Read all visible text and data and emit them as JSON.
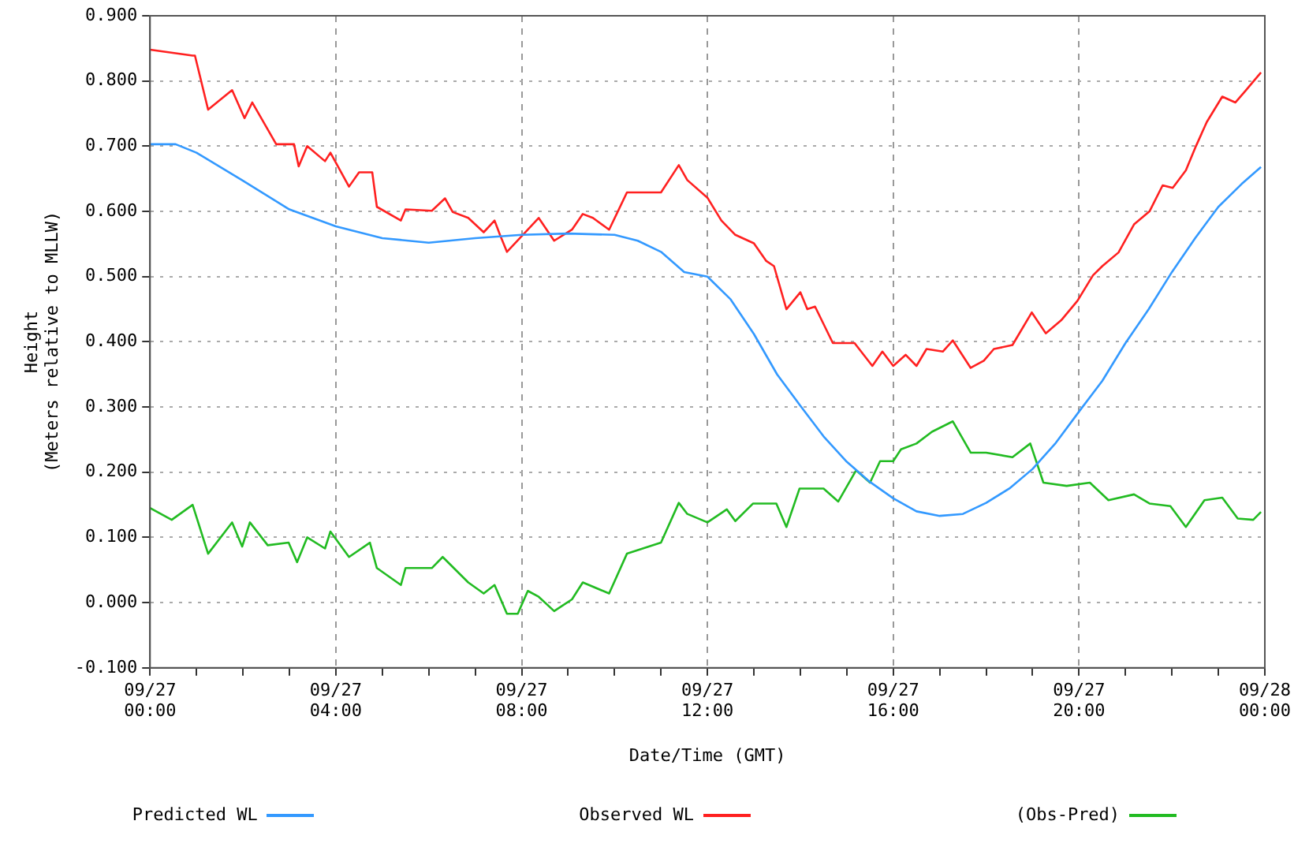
{
  "chart_data": {
    "type": "line",
    "xlabel": "Date/Time (GMT)",
    "ylabel": [
      "Height",
      "(Meters relative to MLLW)"
    ],
    "xlim": [
      "--09-27T00:00",
      "--09-28T00:00"
    ],
    "xticks": [
      {
        "value": "--09-27T00:00",
        "label": "09/27\n00:00"
      },
      {
        "value": "--09-27T01:00",
        "label": null
      },
      {
        "value": "--09-27T02:00",
        "label": null
      },
      {
        "value": "--09-27T03:00",
        "label": null
      },
      {
        "value": "--09-27T04:00",
        "label": "09/27\n04:00"
      },
      {
        "value": "--09-27T05:00",
        "label": null
      },
      {
        "value": "--09-27T06:00",
        "label": null
      },
      {
        "value": "--09-27T07:00",
        "label": null
      },
      {
        "value": "--09-27T08:00",
        "label": "09/27\n08:00"
      },
      {
        "value": "--09-27T09:00",
        "label": null
      },
      {
        "value": "--09-27T10:00",
        "label": null
      },
      {
        "value": "--09-27T11:00",
        "label": null
      },
      {
        "value": "--09-27T12:00",
        "label": "09/27\n12:00"
      },
      {
        "value": "--09-27T13:00",
        "label": null
      },
      {
        "value": "--09-27T14:00",
        "label": null
      },
      {
        "value": "--09-27T15:00",
        "label": null
      },
      {
        "value": "--09-27T16:00",
        "label": "09/27\n16:00"
      },
      {
        "value": "--09-27T17:00",
        "label": null
      },
      {
        "value": "--09-27T18:00",
        "label": null
      },
      {
        "value": "--09-27T19:00",
        "label": null
      },
      {
        "value": "--09-27T20:00",
        "label": "09/27\n20:00"
      },
      {
        "value": "--09-27T21:00",
        "label": null
      },
      {
        "value": "--09-27T22:00",
        "label": null
      },
      {
        "value": "--09-27T23:00",
        "label": null
      },
      {
        "value": "--09-28T00:00",
        "label": "09/28\n00:00"
      }
    ],
    "ylim": [
      -0.1,
      0.9
    ],
    "yticks": [
      {
        "value": -0.1,
        "label": "-0.100"
      },
      {
        "value": 0,
        "label": "0.000"
      },
      {
        "value": 0.1,
        "label": "0.100"
      },
      {
        "value": 0.2,
        "label": "0.200"
      },
      {
        "value": 0.3,
        "label": "0.300"
      },
      {
        "value": 0.4,
        "label": "0.400"
      },
      {
        "value": 0.5,
        "label": "0.500"
      },
      {
        "value": 0.6,
        "label": "0.600"
      },
      {
        "value": 0.7,
        "label": "0.700"
      },
      {
        "value": 0.8,
        "label": "0.800"
      },
      {
        "value": 0.9,
        "label": "0.900"
      }
    ],
    "grid": true,
    "legend": "bottom",
    "marker": "none",
    "line_style": "solid",
    "series": [
      {
        "name": "Predicted WL",
        "color": "#3399ff",
        "x": [
          "--09-27T00:00",
          "--09-27T00:33",
          "--09-27T01:00",
          "--09-27T02:00",
          "--09-27T03:00",
          "--09-27T04:00",
          "--09-27T05:00",
          "--09-27T06:00",
          "--09-27T07:00",
          "--09-27T08:00",
          "--09-27T09:00",
          "--09-27T10:00",
          "--09-27T10:30",
          "--09-27T11:00",
          "--09-27T11:30",
          "--09-27T12:00",
          "--09-27T12:30",
          "--09-27T13:00",
          "--09-27T13:30",
          "--09-27T14:00",
          "--09-27T14:30",
          "--09-27T15:00",
          "--09-27T15:30",
          "--09-27T16:00",
          "--09-27T16:30",
          "--09-27T17:00",
          "--09-27T17:30",
          "--09-27T18:00",
          "--09-27T18:30",
          "--09-27T19:00",
          "--09-27T19:30",
          "--09-27T20:00",
          "--09-27T20:30",
          "--09-27T21:00",
          "--09-27T21:30",
          "--09-27T22:00",
          "--09-27T22:30",
          "--09-27T23:00",
          "--09-27T23:30",
          "--09-27T23:55"
        ],
        "values": [
          0.703,
          0.703,
          0.69,
          0.647,
          0.603,
          0.577,
          0.559,
          0.552,
          0.559,
          0.564,
          0.566,
          0.564,
          0.555,
          0.538,
          0.507,
          0.5,
          0.465,
          0.412,
          0.35,
          0.302,
          0.255,
          0.216,
          0.185,
          0.16,
          0.14,
          0.133,
          0.136,
          0.153,
          0.175,
          0.205,
          0.245,
          0.293,
          0.34,
          0.398,
          0.45,
          0.507,
          0.559,
          0.607,
          0.642,
          0.668
        ]
      },
      {
        "name": "Observed WL",
        "color": "#ff2020",
        "x": [
          "--09-27T00:00",
          "--09-27T00:55",
          "--09-27T00:58",
          "--09-27T01:15",
          "--09-27T01:46",
          "--09-27T02:02",
          "--09-27T02:12",
          "--09-27T02:43",
          "--09-27T03:06",
          "--09-27T03:12",
          "--09-27T03:23",
          "--09-27T03:46",
          "--09-27T03:53",
          "--09-27T04:17",
          "--09-27T04:30",
          "--09-27T04:47",
          "--09-27T04:53",
          "--09-27T05:24",
          "--09-27T05:30",
          "--09-27T06:04",
          "--09-27T06:21",
          "--09-27T06:31",
          "--09-27T06:51",
          "--09-27T07:11",
          "--09-27T07:25",
          "--09-27T07:32",
          "--09-27T07:41",
          "--09-27T08:08",
          "--09-27T08:22",
          "--09-27T08:42",
          "--09-27T09:05",
          "--09-27T09:19",
          "--09-27T09:32",
          "--09-27T09:53",
          "--09-27T10:16",
          "--09-27T11:00",
          "--09-27T11:23",
          "--09-27T11:34",
          "--09-27T12:00",
          "--09-27T12:18",
          "--09-27T12:36",
          "--09-27T13:00",
          "--09-27T13:16",
          "--09-27T13:26",
          "--09-27T13:42",
          "--09-27T14:00",
          "--09-27T14:09",
          "--09-27T14:19",
          "--09-27T14:42",
          "--09-27T15:10",
          "--09-27T15:33",
          "--09-27T15:46",
          "--09-27T16:00",
          "--09-27T16:16",
          "--09-27T16:30",
          "--09-27T16:43",
          "--09-27T17:04",
          "--09-27T17:17",
          "--09-27T17:40",
          "--09-27T17:57",
          "--09-27T18:10",
          "--09-27T18:34",
          "--09-27T18:59",
          "--09-27T19:17",
          "--09-27T19:37",
          "--09-27T19:58",
          "--09-27T20:18",
          "--09-27T20:30",
          "--09-27T20:51",
          "--09-27T21:11",
          "--09-27T21:31",
          "--09-27T21:48",
          "--09-27T22:01",
          "--09-27T22:18",
          "--09-27T22:31",
          "--09-27T22:45",
          "--09-27T23:05",
          "--09-27T23:22",
          "--09-27T23:35",
          "--09-27T23:55"
        ],
        "values": [
          0.848,
          0.839,
          0.839,
          0.756,
          0.786,
          0.743,
          0.767,
          0.703,
          0.703,
          0.669,
          0.7,
          0.677,
          0.69,
          0.638,
          0.66,
          0.66,
          0.607,
          0.586,
          0.603,
          0.601,
          0.62,
          0.599,
          0.59,
          0.568,
          0.586,
          0.564,
          0.538,
          0.572,
          0.59,
          0.555,
          0.572,
          0.596,
          0.59,
          0.572,
          0.629,
          0.629,
          0.671,
          0.648,
          0.621,
          0.586,
          0.564,
          0.551,
          0.524,
          0.516,
          0.45,
          0.476,
          0.45,
          0.454,
          0.398,
          0.398,
          0.363,
          0.385,
          0.363,
          0.38,
          0.363,
          0.389,
          0.385,
          0.402,
          0.36,
          0.371,
          0.389,
          0.395,
          0.445,
          0.413,
          0.433,
          0.463,
          0.502,
          0.516,
          0.537,
          0.58,
          0.6,
          0.64,
          0.636,
          0.663,
          0.7,
          0.737,
          0.776,
          0.767,
          0.785,
          0.813
        ]
      },
      {
        "name": "(Obs-Pred)",
        "color": "#22bb22",
        "x": [
          "--09-27T00:00",
          "--09-27T00:28",
          "--09-27T00:55",
          "--09-27T01:15",
          "--09-27T01:46",
          "--09-27T01:59",
          "--09-27T02:09",
          "--09-27T02:32",
          "--09-27T02:59",
          "--09-27T03:10",
          "--09-27T03:23",
          "--09-27T03:46",
          "--09-27T03:53",
          "--09-27T04:17",
          "--09-27T04:44",
          "--09-27T04:53",
          "--09-27T05:24",
          "--09-27T05:30",
          "--09-27T06:04",
          "--09-27T06:18",
          "--09-27T06:51",
          "--09-27T07:11",
          "--09-27T07:25",
          "--09-27T07:41",
          "--09-27T07:55",
          "--09-27T08:08",
          "--09-27T08:22",
          "--09-27T08:42",
          "--09-27T09:05",
          "--09-27T09:19",
          "--09-27T09:53",
          "--09-27T10:16",
          "--09-27T11:00",
          "--09-27T11:23",
          "--09-27T11:34",
          "--09-27T12:00",
          "--09-27T12:25",
          "--09-27T12:36",
          "--09-27T12:59",
          "--09-27T13:29",
          "--09-27T13:42",
          "--09-27T13:59",
          "--09-27T14:30",
          "--09-27T14:49",
          "--09-27T15:12",
          "--09-27T15:30",
          "--09-27T15:43",
          "--09-27T16:00",
          "--09-27T16:10",
          "--09-27T16:30",
          "--09-27T16:50",
          "--09-27T17:17",
          "--09-27T17:40",
          "--09-27T18:00",
          "--09-27T18:34",
          "--09-27T18:57",
          "--09-27T19:14",
          "--09-27T19:44",
          "--09-27T20:14",
          "--09-27T20:38",
          "--09-27T21:11",
          "--09-27T21:31",
          "--09-27T21:58",
          "--09-27T22:18",
          "--09-27T22:42",
          "--09-27T23:05",
          "--09-27T23:25",
          "--09-27T23:45",
          "--09-27T23:55"
        ],
        "values": [
          0.145,
          0.127,
          0.15,
          0.075,
          0.123,
          0.086,
          0.123,
          0.088,
          0.092,
          0.062,
          0.1,
          0.083,
          0.109,
          0.07,
          0.092,
          0.053,
          0.027,
          0.053,
          0.053,
          0.07,
          0.031,
          0.014,
          0.027,
          -0.017,
          -0.017,
          0.018,
          0.009,
          -0.013,
          0.005,
          0.031,
          0.014,
          0.075,
          0.092,
          0.153,
          0.136,
          0.123,
          0.143,
          0.125,
          0.152,
          0.152,
          0.116,
          0.175,
          0.175,
          0.155,
          0.203,
          0.184,
          0.217,
          0.217,
          0.235,
          0.244,
          0.262,
          0.278,
          0.23,
          0.23,
          0.223,
          0.244,
          0.184,
          0.179,
          0.184,
          0.157,
          0.166,
          0.152,
          0.148,
          0.116,
          0.157,
          0.161,
          0.129,
          0.127,
          0.139
        ]
      }
    ]
  }
}
